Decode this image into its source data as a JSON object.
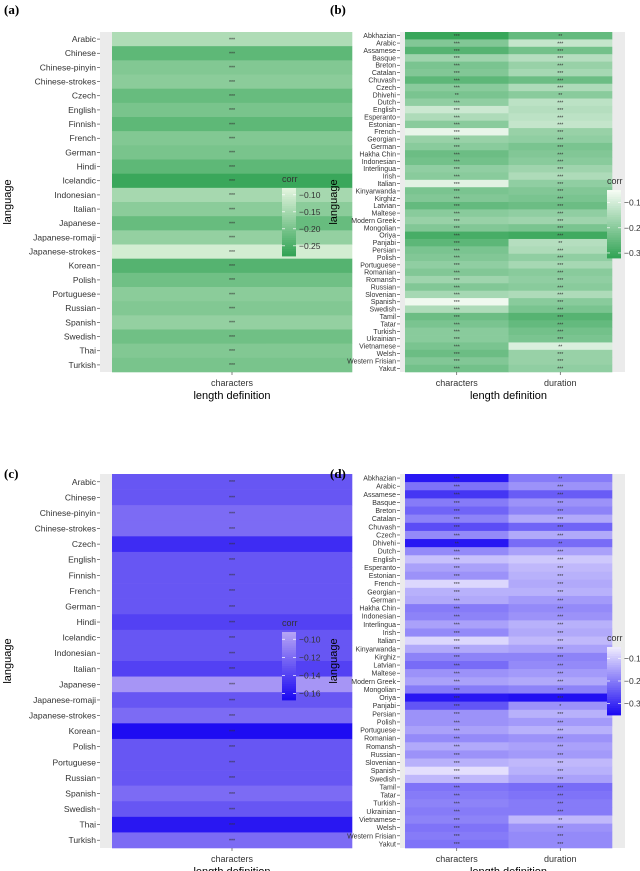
{
  "chart_data": [
    {
      "tag": "(a)",
      "type": "heatmap",
      "xlabel": "length definition",
      "ylabel": "language",
      "columns": [
        "characters"
      ],
      "rows": [
        "Arabic",
        "Chinese",
        "Chinese-pinyin",
        "Chinese-strokes",
        "Czech",
        "English",
        "Finnish",
        "French",
        "German",
        "Hindi",
        "Icelandic",
        "Indonesian",
        "Italian",
        "Japanese",
        "Japanese-romaji",
        "Japanese-strokes",
        "Korean",
        "Polish",
        "Portuguese",
        "Russian",
        "Spanish",
        "Swedish",
        "Thai",
        "Turkish"
      ],
      "values": [
        [
          -0.14
        ],
        [
          -0.23
        ],
        [
          -0.19
        ],
        [
          -0.18
        ],
        [
          -0.22
        ],
        [
          -0.2
        ],
        [
          -0.23
        ],
        [
          -0.19
        ],
        [
          -0.2
        ],
        [
          -0.23
        ],
        [
          -0.27
        ],
        [
          -0.15
        ],
        [
          -0.18
        ],
        [
          -0.22
        ],
        [
          -0.17
        ],
        [
          -0.1
        ],
        [
          -0.24
        ],
        [
          -0.21
        ],
        [
          -0.18
        ],
        [
          -0.19
        ],
        [
          -0.17
        ],
        [
          -0.21
        ],
        [
          -0.19
        ],
        [
          -0.2
        ]
      ],
      "significance": [
        [
          "***"
        ],
        [
          "***"
        ],
        [
          "***"
        ],
        [
          "***"
        ],
        [
          "***"
        ],
        [
          "***"
        ],
        [
          "***"
        ],
        [
          "***"
        ],
        [
          "***"
        ],
        [
          "***"
        ],
        [
          "***"
        ],
        [
          "***"
        ],
        [
          "***"
        ],
        [
          "***"
        ],
        [
          "***"
        ],
        [
          "***"
        ],
        [
          "***"
        ],
        [
          "***"
        ],
        [
          "***"
        ],
        [
          "***"
        ],
        [
          "***"
        ],
        [
          "***"
        ],
        [
          "***"
        ],
        [
          "***"
        ]
      ],
      "legend": {
        "title": "corr",
        "ticks": [
          -0.1,
          -0.15,
          -0.2,
          -0.25
        ],
        "tick_labels": [
          "−0.10",
          "−0.15",
          "−0.20",
          "−0.25"
        ],
        "range": [
          -0.28,
          -0.08
        ]
      },
      "colors": {
        "high": "#e5f5e0",
        "low": "#31a354"
      }
    },
    {
      "tag": "(b)",
      "type": "heatmap",
      "xlabel": "length definition",
      "ylabel": "language",
      "columns": [
        "characters",
        "duration"
      ],
      "rows": [
        "Abkhazian",
        "Arabic",
        "Assamese",
        "Basque",
        "Breton",
        "Catalan",
        "Chuvash",
        "Czech",
        "Dhivehi",
        "Dutch",
        "English",
        "Esperanto",
        "Estonian",
        "French",
        "Georgian",
        "German",
        "Hakha Chin",
        "Indonesian",
        "Interlingua",
        "Irish",
        "Italian",
        "Kinyarwanda",
        "Kirghiz",
        "Latvian",
        "Maltese",
        "Modern Greek",
        "Mongolian",
        "Oriya",
        "Panjabi",
        "Persian",
        "Polish",
        "Portuguese",
        "Romanian",
        "Romansh",
        "Russian",
        "Slovenian",
        "Spanish",
        "Swedish",
        "Tamil",
        "Tatar",
        "Turkish",
        "Ukrainian",
        "Vietnamese",
        "Welsh",
        "Western Frisian",
        "Yakut"
      ],
      "values": [
        [
          -0.31,
          -0.25
        ],
        [
          -0.21,
          -0.12
        ],
        [
          -0.27,
          -0.23
        ],
        [
          -0.17,
          -0.14
        ],
        [
          -0.22,
          -0.18
        ],
        [
          -0.21,
          -0.16
        ],
        [
          -0.26,
          -0.24
        ],
        [
          -0.2,
          -0.15
        ],
        [
          -0.22,
          -0.2
        ],
        [
          -0.19,
          -0.13
        ],
        [
          -0.11,
          -0.14
        ],
        [
          -0.15,
          -0.13
        ],
        [
          -0.2,
          -0.12
        ],
        [
          -0.07,
          -0.18
        ],
        [
          -0.18,
          -0.19
        ],
        [
          -0.2,
          -0.22
        ],
        [
          -0.24,
          -0.21
        ],
        [
          -0.23,
          -0.2
        ],
        [
          -0.19,
          -0.17
        ],
        [
          -0.2,
          -0.15
        ],
        [
          -0.08,
          -0.19
        ],
        [
          -0.22,
          -0.21
        ],
        [
          -0.21,
          -0.22
        ],
        [
          -0.25,
          -0.24
        ],
        [
          -0.2,
          -0.19
        ],
        [
          -0.18,
          -0.17
        ],
        [
          -0.21,
          -0.22
        ],
        [
          -0.29,
          -0.3
        ],
        [
          -0.26,
          -0.14
        ],
        [
          -0.22,
          -0.15
        ],
        [
          -0.21,
          -0.19
        ],
        [
          -0.19,
          -0.16
        ],
        [
          -0.21,
          -0.2
        ],
        [
          -0.17,
          -0.19
        ],
        [
          -0.21,
          -0.2
        ],
        [
          -0.16,
          -0.15
        ],
        [
          -0.06,
          -0.2
        ],
        [
          -0.15,
          -0.22
        ],
        [
          -0.24,
          -0.27
        ],
        [
          -0.22,
          -0.25
        ],
        [
          -0.2,
          -0.23
        ],
        [
          -0.2,
          -0.22
        ],
        [
          -0.22,
          -0.09
        ],
        [
          -0.24,
          -0.18
        ],
        [
          -0.21,
          -0.18
        ],
        [
          -0.23,
          -0.19
        ]
      ],
      "significance": [
        [
          "***",
          "**"
        ],
        [
          "***",
          "***"
        ],
        [
          "***",
          "***"
        ],
        [
          "***",
          "***"
        ],
        [
          "***",
          "***"
        ],
        [
          "***",
          "***"
        ],
        [
          "***",
          "***"
        ],
        [
          "***",
          "***"
        ],
        [
          "**",
          "**"
        ],
        [
          "***",
          "***"
        ],
        [
          "***",
          "***"
        ],
        [
          "***",
          "***"
        ],
        [
          "***",
          "***"
        ],
        [
          "***",
          "***"
        ],
        [
          "***",
          "***"
        ],
        [
          "***",
          "***"
        ],
        [
          "***",
          "***"
        ],
        [
          "***",
          "***"
        ],
        [
          "***",
          "***"
        ],
        [
          "***",
          "***"
        ],
        [
          "***",
          "***"
        ],
        [
          "***",
          "***"
        ],
        [
          "***",
          "***"
        ],
        [
          "***",
          "***"
        ],
        [
          "***",
          "***"
        ],
        [
          "***",
          "***"
        ],
        [
          "***",
          "***"
        ],
        [
          "***",
          "***"
        ],
        [
          "***",
          "**"
        ],
        [
          "***",
          "***"
        ],
        [
          "***",
          "***"
        ],
        [
          "***",
          "***"
        ],
        [
          "***",
          "***"
        ],
        [
          "***",
          "***"
        ],
        [
          "***",
          "***"
        ],
        [
          "***",
          "***"
        ],
        [
          "***",
          "***"
        ],
        [
          "***",
          "***"
        ],
        [
          "***",
          "***"
        ],
        [
          "***",
          "***"
        ],
        [
          "***",
          "***"
        ],
        [
          "***",
          "***"
        ],
        [
          "***",
          "**"
        ],
        [
          "***",
          "***"
        ],
        [
          "***",
          "***"
        ],
        [
          "***",
          "***"
        ]
      ],
      "legend": {
        "title": "corr",
        "ticks": [
          -0.1,
          -0.2,
          -0.3
        ],
        "tick_labels": [
          "−0.1",
          "−0.2",
          "−0.3"
        ],
        "range": [
          -0.32,
          -0.05
        ]
      },
      "colors": {
        "high": "#f7fcf5",
        "low": "#31a354"
      }
    },
    {
      "tag": "(c)",
      "type": "heatmap",
      "xlabel": "length definition",
      "ylabel": "language",
      "columns": [
        "characters"
      ],
      "rows": [
        "Arabic",
        "Chinese",
        "Chinese-pinyin",
        "Chinese-strokes",
        "Czech",
        "English",
        "Finnish",
        "French",
        "German",
        "Hindi",
        "Icelandic",
        "Indonesian",
        "Italian",
        "Japanese",
        "Japanese-romaji",
        "Japanese-strokes",
        "Korean",
        "Polish",
        "Portuguese",
        "Russian",
        "Spanish",
        "Swedish",
        "Thai",
        "Turkish"
      ],
      "values": [
        [
          -0.13
        ],
        [
          -0.13
        ],
        [
          -0.12
        ],
        [
          -0.12
        ],
        [
          -0.15
        ],
        [
          -0.13
        ],
        [
          -0.13
        ],
        [
          -0.13
        ],
        [
          -0.13
        ],
        [
          -0.14
        ],
        [
          -0.13
        ],
        [
          -0.13
        ],
        [
          -0.14
        ],
        [
          -0.1
        ],
        [
          -0.13
        ],
        [
          -0.12
        ],
        [
          -0.165
        ],
        [
          -0.13
        ],
        [
          -0.13
        ],
        [
          -0.13
        ],
        [
          -0.12
        ],
        [
          -0.13
        ],
        [
          -0.16
        ],
        [
          -0.12
        ]
      ],
      "significance": [
        [
          "***"
        ],
        [
          "***"
        ],
        [
          "***"
        ],
        [
          "***"
        ],
        [
          "***"
        ],
        [
          "***"
        ],
        [
          "***"
        ],
        [
          "***"
        ],
        [
          "***"
        ],
        [
          "***"
        ],
        [
          "***"
        ],
        [
          "***"
        ],
        [
          "***"
        ],
        [
          "***"
        ],
        [
          "***"
        ],
        [
          "***"
        ],
        [
          "***"
        ],
        [
          "***"
        ],
        [
          "***"
        ],
        [
          "***"
        ],
        [
          "***"
        ],
        [
          "***"
        ],
        [
          "***"
        ],
        [
          "***"
        ]
      ],
      "legend": {
        "title": "corr",
        "ticks": [
          -0.1,
          -0.12,
          -0.14,
          -0.16
        ],
        "tick_labels": [
          "−0.10",
          "−0.12",
          "−0.14",
          "−0.16"
        ],
        "range": [
          -0.167,
          -0.092
        ]
      },
      "colors": {
        "high": "#b7a6f5",
        "low": "#1a08f2"
      }
    },
    {
      "tag": "(d)",
      "type": "heatmap",
      "xlabel": "length definition",
      "ylabel": "language",
      "columns": [
        "characters",
        "duration"
      ],
      "rows": [
        "Abkhazian",
        "Arabic",
        "Assamese",
        "Basque",
        "Breton",
        "Catalan",
        "Chuvash",
        "Czech",
        "Dhivehi",
        "Dutch",
        "English",
        "Esperanto",
        "Estonian",
        "French",
        "Georgian",
        "German",
        "Hakha Chin",
        "Indonesian",
        "Interlingua",
        "Irish",
        "Italian",
        "Kinyarwanda",
        "Kirghiz",
        "Latvian",
        "Maltese",
        "Modern Greek",
        "Mongolian",
        "Oriya",
        "Panjabi",
        "Persian",
        "Polish",
        "Portuguese",
        "Romanian",
        "Romansh",
        "Russian",
        "Slovenian",
        "Spanish",
        "Swedish",
        "Tamil",
        "Tatar",
        "Turkish",
        "Ukrainian",
        "Vietnamese",
        "Welsh",
        "Western Frisian",
        "Yakut"
      ],
      "values": [
        [
          -0.33,
          -0.2
        ],
        [
          -0.21,
          -0.17
        ],
        [
          -0.29,
          -0.24
        ],
        [
          -0.2,
          -0.17
        ],
        [
          -0.23,
          -0.19
        ],
        [
          -0.19,
          -0.14
        ],
        [
          -0.26,
          -0.23
        ],
        [
          -0.18,
          -0.14
        ],
        [
          -0.33,
          -0.22
        ],
        [
          -0.18,
          -0.15
        ],
        [
          -0.11,
          -0.1
        ],
        [
          -0.15,
          -0.12
        ],
        [
          -0.17,
          -0.13
        ],
        [
          -0.08,
          -0.14
        ],
        [
          -0.13,
          -0.13
        ],
        [
          -0.14,
          -0.16
        ],
        [
          -0.2,
          -0.18
        ],
        [
          -0.19,
          -0.17
        ],
        [
          -0.15,
          -0.13
        ],
        [
          -0.18,
          -0.14
        ],
        [
          -0.08,
          -0.12
        ],
        [
          -0.14,
          -0.15
        ],
        [
          -0.19,
          -0.19
        ],
        [
          -0.22,
          -0.18
        ],
        [
          -0.17,
          -0.16
        ],
        [
          -0.15,
          -0.14
        ],
        [
          -0.2,
          -0.19
        ],
        [
          -0.33,
          -0.34
        ],
        [
          -0.25,
          -0.17
        ],
        [
          -0.17,
          -0.13
        ],
        [
          -0.17,
          -0.16
        ],
        [
          -0.15,
          -0.13
        ],
        [
          -0.18,
          -0.17
        ],
        [
          -0.14,
          -0.15
        ],
        [
          -0.17,
          -0.16
        ],
        [
          -0.13,
          -0.12
        ],
        [
          -0.07,
          -0.13
        ],
        [
          -0.12,
          -0.15
        ],
        [
          -0.21,
          -0.22
        ],
        [
          -0.2,
          -0.21
        ],
        [
          -0.19,
          -0.2
        ],
        [
          -0.2,
          -0.2
        ],
        [
          -0.19,
          -0.12
        ],
        [
          -0.21,
          -0.17
        ],
        [
          -0.2,
          -0.18
        ],
        [
          -0.21,
          -0.18
        ]
      ],
      "significance": [
        [
          "***",
          "**"
        ],
        [
          "***",
          "***"
        ],
        [
          "***",
          "***"
        ],
        [
          "***",
          "***"
        ],
        [
          "***",
          "***"
        ],
        [
          "***",
          "***"
        ],
        [
          "***",
          "***"
        ],
        [
          "***",
          "***"
        ],
        [
          "**",
          "**"
        ],
        [
          "***",
          "***"
        ],
        [
          "***",
          "***"
        ],
        [
          "***",
          "***"
        ],
        [
          "***",
          "***"
        ],
        [
          "***",
          "***"
        ],
        [
          "***",
          "***"
        ],
        [
          "***",
          "***"
        ],
        [
          "***",
          "***"
        ],
        [
          "***",
          "***"
        ],
        [
          "***",
          "***"
        ],
        [
          "***",
          "***"
        ],
        [
          "***",
          "***"
        ],
        [
          "***",
          "***"
        ],
        [
          "***",
          "***"
        ],
        [
          "***",
          "***"
        ],
        [
          "***",
          "***"
        ],
        [
          "***",
          "***"
        ],
        [
          "***",
          "***"
        ],
        [
          "***",
          "***"
        ],
        [
          "***",
          "*"
        ],
        [
          "***",
          "***"
        ],
        [
          "***",
          "***"
        ],
        [
          "***",
          "***"
        ],
        [
          "***",
          "***"
        ],
        [
          "***",
          "***"
        ],
        [
          "***",
          "***"
        ],
        [
          "***",
          "***"
        ],
        [
          "***",
          "***"
        ],
        [
          "***",
          "***"
        ],
        [
          "***",
          "***"
        ],
        [
          "***",
          "***"
        ],
        [
          "***",
          "***"
        ],
        [
          "***",
          "***"
        ],
        [
          "***",
          "**"
        ],
        [
          "***",
          "***"
        ],
        [
          "***",
          "***"
        ],
        [
          "***",
          "***"
        ]
      ],
      "legend": {
        "title": "corr",
        "ticks": [
          -0.1,
          -0.2,
          -0.3
        ],
        "tick_labels": [
          "−0.1",
          "−0.2",
          "−0.3"
        ],
        "range": [
          -0.35,
          -0.05
        ]
      },
      "colors": {
        "high": "#f2eefe",
        "low": "#1a08f2"
      }
    }
  ]
}
